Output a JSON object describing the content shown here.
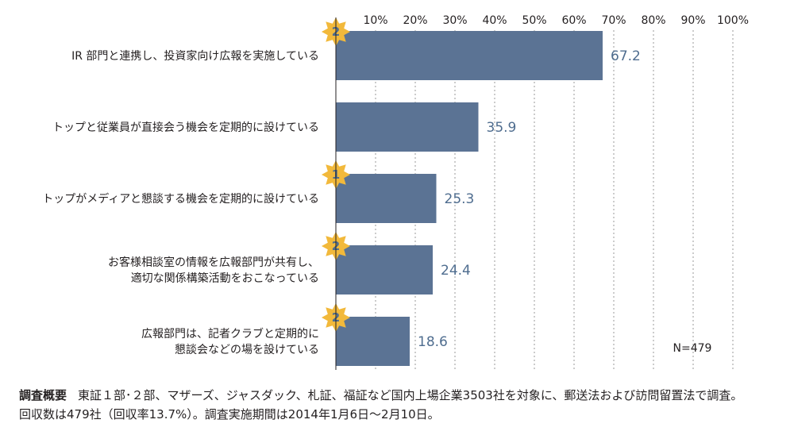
{
  "chart_data": {
    "type": "bar",
    "orientation": "horizontal",
    "categories": [
      [
        "IR 部門と連携し、投資家向け広報を実施している"
      ],
      [
        "トップと従業員が直接会う機会を定期的に設けている"
      ],
      [
        "トップがメディアと懇談する機会を定期的に設けている"
      ],
      [
        "お客様相談室の情報を広報部門が共有し、",
        "適切な関係構築活動をおこなっている"
      ],
      [
        "広報部門は、記者クラブと定期的に",
        "懇談会などの場を設けている"
      ]
    ],
    "values": [
      67.2,
      35.9,
      25.3,
      24.4,
      18.6
    ],
    "value_labels": [
      "67.2",
      "35.9",
      "25.3",
      "24.4",
      "18.6"
    ],
    "badges": [
      "2",
      "",
      "1",
      "2",
      "2"
    ],
    "xlim": [
      0,
      100
    ],
    "x_ticks": [
      "10%",
      "20%",
      "30%",
      "40%",
      "50%",
      "60%",
      "70%",
      "80%",
      "90%",
      "100%"
    ],
    "x_tick_values": [
      10,
      20,
      30,
      40,
      50,
      60,
      70,
      80,
      90,
      100
    ],
    "grid": "vertical-dashed",
    "n_label": "N=479",
    "colors": {
      "bar": "#5b7394",
      "value_text": "#4f6d8f",
      "badge_star": "#f2b93b",
      "badge_text": "#4f6d8f",
      "grid": "#9a9a9a"
    }
  },
  "survey": {
    "title": "調査概要",
    "line1": "東証１部･２部、マザーズ、ジャスダック、札証、福証など国内上場企業3503社を対象に、郵送法および訪問留置法で調査。",
    "line2": "回収数は479社（回収率13.7%）。調査実施期間は2014年1月6日～2月10日。"
  }
}
